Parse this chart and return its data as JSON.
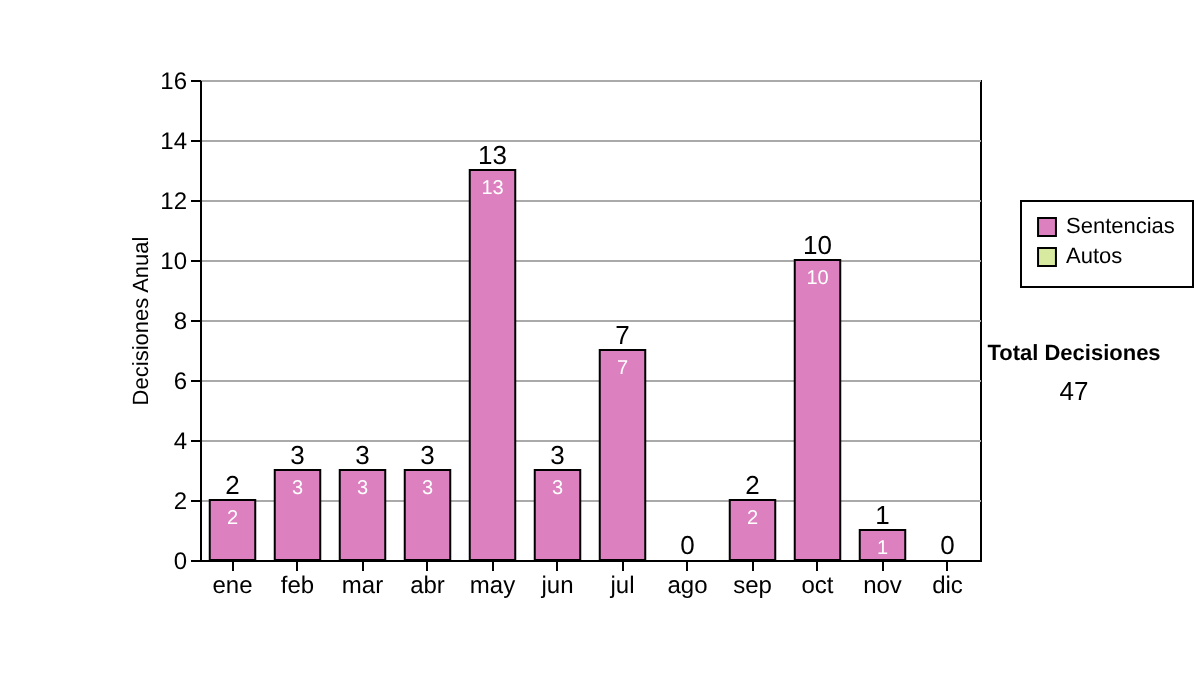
{
  "chart_data": {
    "type": "bar",
    "stacked": true,
    "ylabel": "Decisiones Anual",
    "categories": [
      "ene",
      "feb",
      "mar",
      "abr",
      "may",
      "jun",
      "jul",
      "ago",
      "sep",
      "oct",
      "nov",
      "dic"
    ],
    "series": [
      {
        "name": "Sentencias",
        "color": "#dd80c0",
        "values": [
          2,
          3,
          3,
          3,
          13,
          3,
          7,
          0,
          2,
          10,
          1,
          0
        ],
        "value_labels": [
          "2",
          "3",
          "3",
          "3",
          "13",
          "3",
          "7",
          null,
          "2",
          "10",
          "1",
          null
        ]
      },
      {
        "name": "Autos",
        "color": "#d8eaa0",
        "values": [
          0,
          0,
          0,
          0,
          0,
          0,
          0,
          0,
          0,
          0,
          0,
          0
        ]
      }
    ],
    "totals": [
      "2",
      "3",
      "3",
      "3",
      "13",
      "3",
      "7",
      "0",
      "2",
      "10",
      "1",
      "0"
    ],
    "ylim": [
      0,
      16
    ],
    "yticks": [
      0,
      2,
      4,
      6,
      8,
      10,
      12,
      14,
      16
    ],
    "grid": "y",
    "legend": "right",
    "annotations": [
      "Total Decisiones",
      "47"
    ]
  }
}
